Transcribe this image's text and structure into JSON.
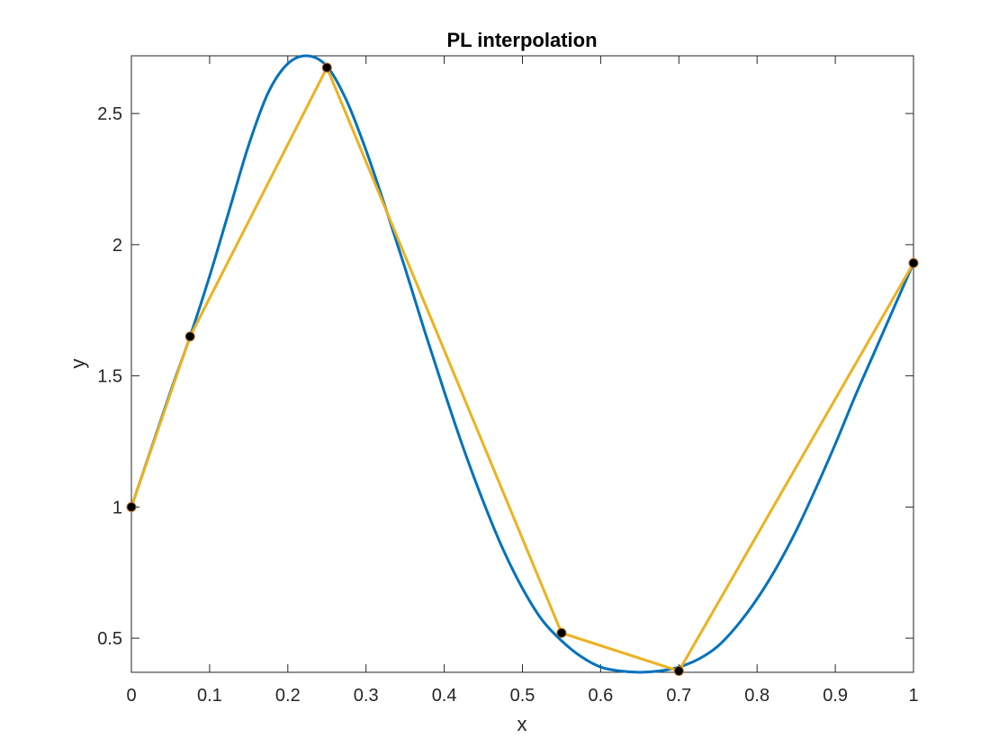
{
  "chart_data": {
    "type": "line",
    "title": "PL interpolation",
    "xlabel": "x",
    "ylabel": "y",
    "xlim": [
      0,
      1
    ],
    "ylim": [
      0.37,
      2.72
    ],
    "grid": false,
    "legend": "none",
    "xticks": [
      "0",
      "0.1",
      "0.2",
      "0.3",
      "0.4",
      "0.5",
      "0.6",
      "0.7",
      "0.8",
      "0.9",
      "1"
    ],
    "yticks": [
      "0.5",
      "1",
      "1.5",
      "2",
      "2.5"
    ],
    "colors": {
      "curve": "#0072BD",
      "interpolant": "#EDB120",
      "nodes": "#000000",
      "axes": "#262626"
    },
    "series": [
      {
        "kind": "curve",
        "x": [
          0,
          0.025,
          0.05,
          0.075,
          0.1,
          0.125,
          0.15,
          0.175,
          0.2,
          0.225,
          0.25,
          0.275,
          0.3,
          0.325,
          0.35,
          0.375,
          0.4,
          0.425,
          0.45,
          0.475,
          0.5,
          0.525,
          0.55,
          0.575,
          0.6,
          0.625,
          0.65,
          0.675,
          0.7,
          0.725,
          0.75,
          0.775,
          0.8,
          0.825,
          0.85,
          0.875,
          0.9,
          0.925,
          0.95,
          0.975,
          1
        ],
        "values": [
          1,
          1.22,
          1.44,
          1.65,
          1.88,
          2.13,
          2.38,
          2.58,
          2.69,
          2.72,
          2.68,
          2.55,
          2.36,
          2.14,
          1.91,
          1.67,
          1.44,
          1.22,
          1.02,
          0.84,
          0.69,
          0.57,
          0.49,
          0.43,
          0.39,
          0.375,
          0.37,
          0.375,
          0.39,
          0.42,
          0.47,
          0.55,
          0.65,
          0.77,
          0.91,
          1.07,
          1.24,
          1.42,
          1.59,
          1.76,
          1.93
        ]
      },
      {
        "kind": "interpolant",
        "x": [
          0,
          0.075,
          0.25,
          0.55,
          0.7,
          1
        ],
        "values": [
          1,
          1.65,
          2.675,
          0.52,
          0.375,
          1.93
        ]
      }
    ]
  }
}
